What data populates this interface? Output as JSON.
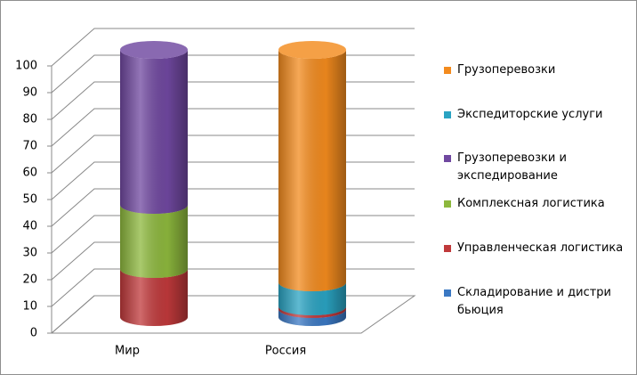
{
  "chart_data": {
    "type": "bar3d-cylinder-stacked",
    "categories": [
      "Мир",
      "Россия"
    ],
    "series": [
      {
        "name": "Складирование и дистри бьюция",
        "color": "#3a78c3",
        "values": [
          0,
          3
        ]
      },
      {
        "name": "Управленческая логистика",
        "color": "#c0393b",
        "values": [
          18,
          1
        ]
      },
      {
        "name": "Комплексная логистика",
        "color": "#8db83d",
        "values": [
          24,
          0
        ]
      },
      {
        "name": "Грузоперевозки и экспедирование",
        "color": "#7048a0",
        "values": [
          58,
          0
        ]
      },
      {
        "name": "Экспедиторские услуги",
        "color": "#2aa3c2",
        "values": [
          0,
          9
        ]
      },
      {
        "name": "Грузоперевозки",
        "color": "#f38b1e",
        "values": [
          0,
          87
        ]
      }
    ],
    "ylim": [
      0,
      100
    ],
    "yticks": [
      0,
      10,
      20,
      30,
      40,
      50,
      60,
      70,
      80,
      90,
      100
    ],
    "grid": true
  }
}
